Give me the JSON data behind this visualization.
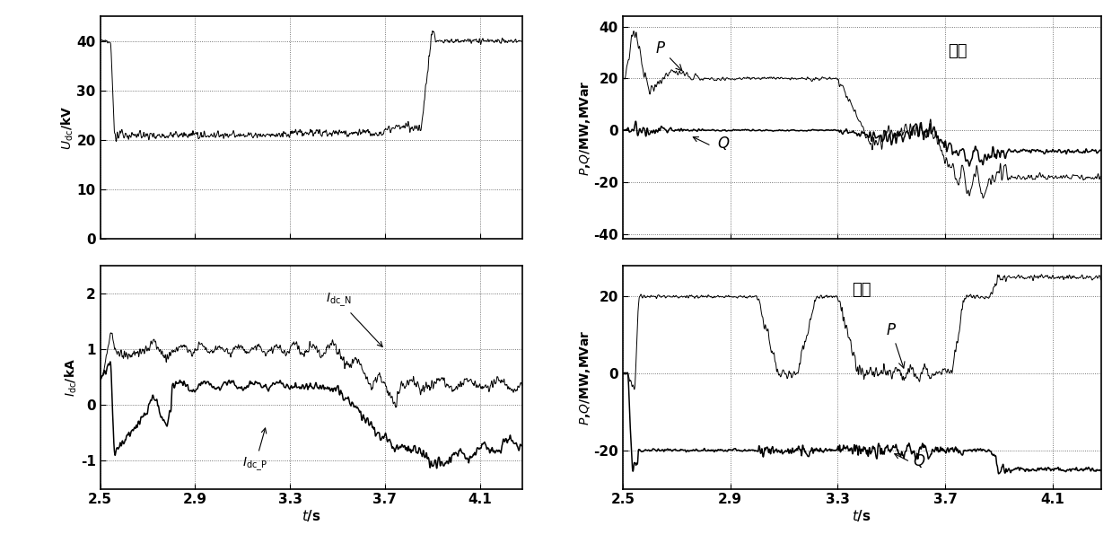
{
  "t_start": 2.5,
  "t_end": 4.28,
  "dt": 0.001,
  "subplot1": {
    "ylabel": "$U_{\\mathrm{dc}}$/kV",
    "ylim": [
      0,
      45
    ],
    "yticks": [
      0,
      10,
      20,
      30,
      40
    ]
  },
  "subplot2": {
    "ylabel": "$I_{\\mathrm{dc}}$/kA",
    "ylim": [
      -1.5,
      2.5
    ],
    "yticks": [
      -1,
      0,
      1,
      2
    ],
    "xlabel": "$t$/s"
  },
  "subplot3": {
    "ylabel": "$P$,$Q$/MW,MVar",
    "ylim": [
      -42,
      44
    ],
    "yticks": [
      -40,
      -20,
      0,
      20,
      40
    ],
    "title": "送端"
  },
  "subplot4": {
    "ylabel": "$P$,$Q$/MW,MVar",
    "ylim": [
      -30,
      28
    ],
    "yticks": [
      -20,
      0,
      20
    ],
    "xlabel": "$t$/s",
    "title": "受端"
  },
  "xticks": [
    2.5,
    2.9,
    3.3,
    3.7,
    4.1
  ],
  "xlim": [
    2.5,
    4.28
  ],
  "linecolor": "black",
  "linewidth_thin": 0.7,
  "linewidth_thick": 1.1,
  "background": "white"
}
